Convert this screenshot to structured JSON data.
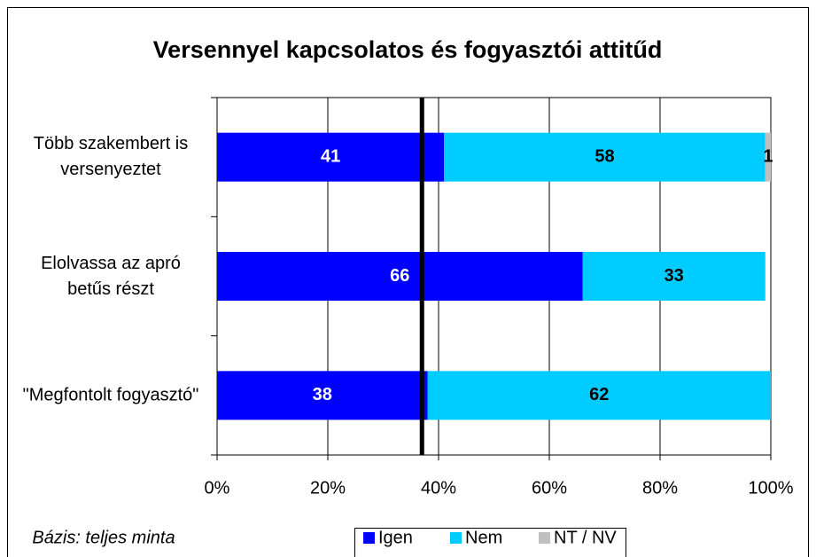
{
  "chart_data": {
    "type": "stacked_barh",
    "title": "Versennyel kapcsolatos és fogyasztói attitűd",
    "categories": [
      "Több szakembert is versenyeztet",
      "Elolvassa az apró betűs részt",
      "\"Megfontolt fogyasztó\""
    ],
    "series": [
      {
        "name": "Igen",
        "color": "#0000ff",
        "label_color": "#ffffff",
        "values": [
          41,
          66,
          38
        ]
      },
      {
        "name": "Nem",
        "color": "#00ccff",
        "label_color": "#000000",
        "values": [
          58,
          33,
          62
        ]
      },
      {
        "name": "NT / NV",
        "color": "#c0c0c0",
        "label_color": "#000000",
        "values": [
          1,
          0,
          0
        ]
      }
    ],
    "xlim": [
      0,
      100
    ],
    "xticks": [
      {
        "value": 0,
        "label": "0%"
      },
      {
        "value": 20,
        "label": "20%"
      },
      {
        "value": 40,
        "label": "40%"
      },
      {
        "value": 60,
        "label": "60%"
      },
      {
        "value": 80,
        "label": "80%"
      },
      {
        "value": 100,
        "label": "100%"
      }
    ],
    "reference_line": 37,
    "grid": true,
    "legend": "bottom",
    "note": "Bázis: teljes minta"
  }
}
